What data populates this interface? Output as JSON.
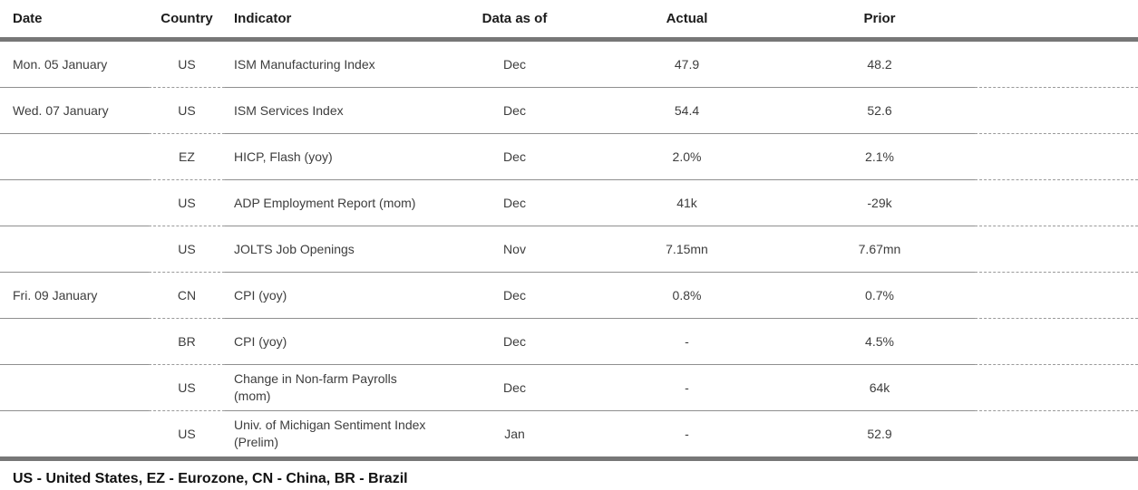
{
  "table": {
    "columns": {
      "date": "Date",
      "country": "Country",
      "indicator": "Indicator",
      "data_as_of": "Data as of",
      "actual": "Actual",
      "prior": "Prior"
    },
    "rows": [
      {
        "date": "Mon. 05 January",
        "country": "US",
        "indicator": "ISM Manufacturing Index",
        "data_as_of": "Dec",
        "actual": "47.9",
        "prior": "48.2"
      },
      {
        "date": "Wed. 07 January",
        "country": "US",
        "indicator": "ISM Services Index",
        "data_as_of": "Dec",
        "actual": "54.4",
        "prior": "52.6"
      },
      {
        "date": "",
        "country": "EZ",
        "indicator": "HICP, Flash (yoy)",
        "data_as_of": "Dec",
        "actual": "2.0%",
        "prior": "2.1%"
      },
      {
        "date": "",
        "country": "US",
        "indicator": "ADP Employment Report (mom)",
        "data_as_of": "Dec",
        "actual": "41k",
        "prior": "-29k"
      },
      {
        "date": "",
        "country": "US",
        "indicator": "JOLTS Job Openings",
        "data_as_of": "Nov",
        "actual": "7.15mn",
        "prior": "7.67mn"
      },
      {
        "date": "Fri. 09 January",
        "country": "CN",
        "indicator": "CPI (yoy)",
        "data_as_of": "Dec",
        "actual": "0.8%",
        "prior": "0.7%"
      },
      {
        "date": "",
        "country": "BR",
        "indicator": "CPI (yoy)",
        "data_as_of": "Dec",
        "actual": "-",
        "prior": "4.5%"
      },
      {
        "date": "",
        "country": "US",
        "indicator": "Change in Non-farm Payrolls (mom)",
        "data_as_of": "Dec",
        "actual": "-",
        "prior": "64k"
      },
      {
        "date": "",
        "country": "US",
        "indicator": "Univ. of Michigan Sentiment Index (Prelim)",
        "data_as_of": "Jan",
        "actual": "-",
        "prior": "52.9"
      }
    ],
    "footnote": "US - United States, EZ - Eurozone, CN - China, BR - Brazil"
  },
  "colors": {
    "rule_thick": "#777777",
    "rule_thin_solid": "#8f8f8f",
    "rule_thin_dashed": "#9a9a9a",
    "body_text": "#3d3d3d",
    "header_text": "#1c1c1c"
  }
}
